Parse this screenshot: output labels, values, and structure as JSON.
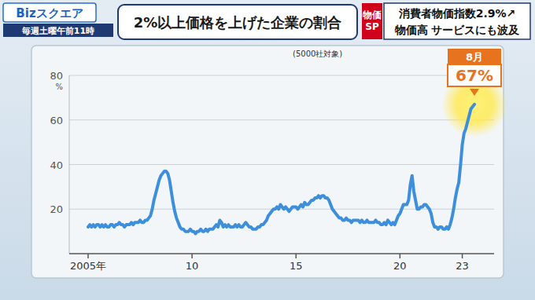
{
  "header": {
    "logo": "Bizスクエア",
    "schedule": "毎週土曜午前11時",
    "badge": "物価SP",
    "headline": [
      "消費者物価指数2.9%↗",
      "物価高 サービスにも波及"
    ]
  },
  "chart_data": {
    "type": "line",
    "title": "2%以上価格を上げた企業の割合",
    "subtitle": "(5000社対象)",
    "ylabel": "%",
    "categories": [
      "2005年",
      null,
      null,
      null,
      null,
      null,
      null,
      null,
      null,
      null,
      null,
      null,
      null,
      null,
      null,
      null,
      null,
      null,
      null,
      null,
      null,
      null,
      null,
      null,
      null,
      null,
      null,
      null,
      null,
      null,
      null,
      null,
      null,
      null,
      null,
      null,
      null,
      null,
      null,
      null,
      null,
      null,
      null,
      null,
      null,
      null,
      null,
      null,
      null,
      null,
      null,
      null,
      null,
      null,
      null,
      null,
      null,
      null,
      null,
      null,
      "10",
      null,
      null,
      null,
      null,
      null,
      null,
      null,
      null,
      null,
      null,
      null,
      null,
      null,
      null,
      null,
      null,
      null,
      null,
      null,
      null,
      null,
      null,
      null,
      null,
      null,
      null,
      null,
      null,
      null,
      null,
      null,
      null,
      null,
      null,
      null,
      null,
      null,
      null,
      null,
      null,
      null,
      null,
      null,
      null,
      null,
      null,
      null,
      null,
      null,
      null,
      null,
      null,
      null,
      null,
      null,
      null,
      null,
      null,
      null,
      "15",
      null,
      null,
      null,
      null,
      null,
      null,
      null,
      null,
      null,
      null,
      null,
      null,
      null,
      null,
      null,
      null,
      null,
      null,
      null,
      null,
      null,
      null,
      null,
      null,
      null,
      null,
      null,
      null,
      null,
      null,
      null,
      null,
      null,
      null,
      null,
      null,
      null,
      null,
      null,
      null,
      null,
      null,
      null,
      null,
      null,
      null,
      null,
      null,
      null,
      null,
      null,
      null,
      null,
      null,
      null,
      null,
      null,
      null,
      null,
      "20",
      null,
      null,
      null,
      null,
      null,
      null,
      null,
      null,
      null,
      null,
      null,
      null,
      null,
      null,
      null,
      null,
      null,
      null,
      null,
      null,
      null,
      null,
      null,
      null,
      null,
      null,
      null,
      null,
      null,
      null,
      null,
      null,
      null,
      null,
      null,
      "23",
      null,
      null,
      null,
      null,
      null,
      null,
      null
    ],
    "values": [
      12,
      13,
      12,
      13,
      12,
      13,
      13,
      12,
      13,
      12,
      13,
      12,
      12,
      13,
      13,
      12,
      13,
      13,
      14,
      13,
      13,
      12,
      13,
      13,
      13,
      14,
      13,
      14,
      14,
      14,
      15,
      14,
      14,
      15,
      15,
      16,
      17,
      20,
      24,
      27,
      30,
      33,
      35,
      36,
      37,
      37,
      36,
      33,
      28,
      23,
      19,
      16,
      14,
      12,
      11,
      11,
      10,
      10,
      10,
      11,
      10,
      10,
      9,
      10,
      10,
      11,
      10,
      10,
      11,
      10,
      11,
      11,
      11,
      12,
      13,
      12,
      15,
      14,
      12,
      13,
      12,
      13,
      12,
      12,
      12,
      13,
      12,
      13,
      12,
      12,
      13,
      14,
      13,
      12,
      12,
      11,
      11,
      11,
      12,
      12,
      13,
      13,
      14,
      15,
      17,
      18,
      19,
      20,
      20,
      21,
      20,
      22,
      21,
      20,
      21,
      20,
      19,
      20,
      21,
      21,
      21,
      20,
      21,
      22,
      21,
      23,
      22,
      22,
      23,
      24,
      24,
      25,
      25,
      26,
      25,
      26,
      26,
      25,
      25,
      24,
      22,
      20,
      19,
      18,
      17,
      16,
      16,
      15,
      15,
      16,
      15,
      15,
      14,
      15,
      15,
      15,
      15,
      14,
      15,
      14,
      14,
      15,
      14,
      14,
      14,
      14,
      15,
      14,
      14,
      13,
      13,
      14,
      13,
      15,
      14,
      13,
      14,
      13,
      15,
      17,
      18,
      20,
      22,
      22,
      22,
      24,
      31,
      35,
      28,
      24,
      20,
      20,
      21,
      21,
      22,
      22,
      21,
      20,
      18,
      14,
      12,
      12,
      11,
      12,
      12,
      11,
      11,
      12,
      11,
      13,
      16,
      20,
      25,
      29,
      32,
      40,
      49,
      54,
      56,
      59,
      62,
      65,
      66,
      67
    ],
    "color": "#3d8fdc",
    "ylim": [
      0,
      80
    ],
    "yticks": [
      20,
      40,
      60,
      80
    ],
    "grid": true,
    "annotations": [
      "8月",
      "67%"
    ]
  }
}
